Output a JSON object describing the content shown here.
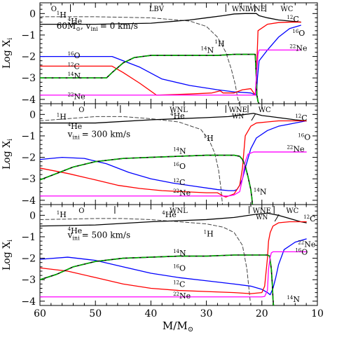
{
  "figure": {
    "xlabel_main": "M/M",
    "xlabel_sub": "⊙",
    "ylabel_main": "Log X",
    "ylabel_sub": "i",
    "xlim": [
      60,
      10
    ],
    "ylim": [
      -4.2,
      0.5
    ],
    "x_ticks": [
      60,
      50,
      40,
      30,
      20,
      10
    ],
    "y_ticks": [
      0,
      -1,
      -2,
      -3,
      -4
    ],
    "colors": {
      "H": "#444444",
      "He": "#000000",
      "C": "#ff0000",
      "O": "#0000ff",
      "Ne": "#ff00ff",
      "N": "#00aa00",
      "N_underlay": "#000000"
    }
  },
  "chart_data": [
    {
      "type": "line",
      "annotation_line1": "60M",
      "annotation_sub1": "⊙",
      "annotation_line2": ", v",
      "annotation_sub2": "ini",
      "annotation_line3": "= 0 km/s",
      "phases": [
        {
          "label": "O",
          "x": 57.5
        },
        {
          "label": "LBV",
          "x": 39
        },
        {
          "label": "WNL",
          "x": 23.8,
          "sup": "↑"
        },
        {
          "label": "WNE",
          "x": 21
        },
        {
          "label": "WC",
          "x": 15.5
        }
      ],
      "phase_bars": [
        54.5,
        26.5,
        21.3,
        19.3
      ],
      "series": [
        {
          "species": "H",
          "mass_number": "1",
          "label_x": 57,
          "label_y": -0.05,
          "label2_x": 28.5,
          "label2_y": -1.4,
          "style": "dashed",
          "x": [
            60,
            50,
            40,
            33,
            30,
            28,
            26.5,
            25.5,
            24.8,
            24.4,
            24.1
          ],
          "y": [
            -0.15,
            -0.15,
            -0.2,
            -0.35,
            -0.6,
            -1.1,
            -1.8,
            -2.6,
            -3.3,
            -3.9,
            -4.2
          ]
        },
        {
          "species": "He",
          "mass_number": "4",
          "label_x": 55,
          "label_y": -0.35,
          "x": [
            60,
            50,
            40,
            33,
            30,
            27,
            25,
            23,
            21,
            20.5,
            19,
            17,
            15,
            13
          ],
          "y": [
            -0.5,
            -0.5,
            -0.45,
            -0.3,
            -0.2,
            -0.1,
            -0.02,
            0,
            0,
            -0.1,
            -0.2,
            -0.3,
            -0.35,
            -0.4
          ]
        },
        {
          "species": "O",
          "mass_number": "16",
          "label_x": 55,
          "label_y": -1.95,
          "label2_x": 14.5,
          "label2_y": -0.9,
          "x": [
            60,
            47,
            42,
            38,
            33,
            28,
            25,
            22,
            21,
            20.8,
            20.5,
            19,
            17,
            15,
            13
          ],
          "y": [
            -2.0,
            -2.0,
            -2.5,
            -3.05,
            -3.35,
            -3.55,
            -3.65,
            -3.7,
            -3.8,
            -3.0,
            -2.2,
            -1.7,
            -1.1,
            -0.7,
            -0.55
          ]
        },
        {
          "species": "C",
          "mass_number": "12",
          "label_x": 55,
          "label_y": -2.45,
          "label2_x": 15.5,
          "label2_y": -0.25,
          "x": [
            60,
            47,
            45,
            42,
            39,
            33,
            29,
            27.5,
            27,
            25,
            23.5,
            22,
            21.2,
            21,
            20.7,
            19,
            17,
            15,
            13
          ],
          "y": [
            -2.45,
            -2.45,
            -2.75,
            -3.25,
            -3.8,
            -3.75,
            -3.7,
            -3.6,
            -3.7,
            -3.7,
            -3.55,
            -3.5,
            -3.8,
            -3.0,
            -0.8,
            -0.5,
            -0.42,
            -0.4,
            -0.4
          ]
        },
        {
          "species": "N",
          "mass_number": "14",
          "label_x": 55,
          "label_y": -2.9,
          "label2_x": 31,
          "label2_y": -1.7,
          "style": "nitrogen",
          "x": [
            60,
            48,
            47,
            45,
            43,
            40,
            35,
            30,
            28,
            25,
            22,
            21.2,
            21,
            20.9,
            20.7,
            20.5
          ],
          "y": [
            -3.0,
            -3.0,
            -2.75,
            -2.3,
            -2.05,
            -1.95,
            -1.95,
            -1.95,
            -1.95,
            -1.9,
            -1.9,
            -1.9,
            -3.0,
            -3.8,
            -4.1,
            -4.2
          ]
        },
        {
          "species": "Ne",
          "mass_number": "22",
          "label_x": 55,
          "label_y": -3.85,
          "label2_x": 15,
          "label2_y": -1.6,
          "x": [
            60,
            30,
            25,
            21.2,
            21,
            20.7,
            20.5,
            17,
            13
          ],
          "y": [
            -3.8,
            -3.8,
            -3.8,
            -3.8,
            -3.0,
            -1.9,
            -1.7,
            -1.7,
            -1.7
          ]
        }
      ]
    },
    {
      "type": "line",
      "annotation_line1": "",
      "annotation_sub1": "",
      "annotation_line2": "v",
      "annotation_sub2": "ini",
      "annotation_line3": "= 300 km/s",
      "phases": [
        {
          "label": "O",
          "x": 52.5
        },
        {
          "label": "WNL",
          "x": 35
        },
        {
          "label": "WNE",
          "x": 24.3
        },
        {
          "label": "WN",
          "x": 24.3,
          "level": 2
        },
        {
          "label": "WC",
          "x": 19.5
        }
      ],
      "phase_bars": [
        45.5,
        26.5,
        22.5
      ],
      "slash_bar": [
        21.5
      ],
      "series": [
        {
          "species": "H",
          "mass_number": "1",
          "label_x": 57,
          "label_y": -0.1,
          "label2_x": 30.5,
          "label2_y": -1.1,
          "style": "dashed",
          "x": [
            60,
            50,
            45,
            40,
            35,
            31,
            29.5,
            28.5,
            27.8,
            27.4,
            27.1
          ],
          "y": [
            -0.3,
            -0.1,
            -0.1,
            -0.2,
            -0.35,
            -0.7,
            -1.2,
            -1.8,
            -2.6,
            -3.4,
            -4.2
          ]
        },
        {
          "species": "He",
          "mass_number": "4",
          "label_x": 55,
          "label_y": -0.55,
          "label2_x": 36.5,
          "label2_y": -0.05,
          "x": [
            60,
            50,
            40,
            35,
            30,
            26,
            23,
            21.5,
            20,
            17,
            14,
            12
          ],
          "y": [
            -0.4,
            -0.4,
            -0.25,
            -0.2,
            -0.15,
            -0.1,
            0,
            0.05,
            -0.05,
            -0.15,
            -0.25,
            -0.3
          ]
        },
        {
          "species": "O",
          "mass_number": "16",
          "label_x": 36,
          "label_y": -2.4,
          "label2_x": 13.5,
          "label2_y": -1.05,
          "x": [
            60,
            56,
            52,
            48,
            44,
            40,
            36,
            32,
            28,
            26,
            25,
            24.5,
            24,
            23.5,
            23,
            22,
            21,
            19,
            17,
            15,
            13,
            12
          ],
          "y": [
            -2.1,
            -2.0,
            -2.05,
            -2.3,
            -2.7,
            -3.0,
            -3.2,
            -3.35,
            -3.5,
            -3.55,
            -3.55,
            -3.5,
            -3.3,
            -3.0,
            -2.5,
            -1.6,
            -1.1,
            -0.75,
            -0.55,
            -0.45,
            -0.35,
            -0.3
          ]
        },
        {
          "species": "C",
          "mass_number": "12",
          "label_x": 36,
          "label_y": -3.15,
          "label2_x": 14,
          "label2_y": -0.15,
          "x": [
            60,
            55,
            50,
            46,
            42,
            38,
            34,
            30,
            28,
            27,
            26.5,
            25,
            24,
            23.5,
            23,
            22,
            21,
            19,
            17,
            15,
            13,
            12
          ],
          "y": [
            -2.5,
            -2.75,
            -3.05,
            -3.3,
            -3.45,
            -3.55,
            -3.6,
            -3.65,
            -3.65,
            -3.8,
            -3.85,
            -3.7,
            -3.3,
            -2.5,
            -1.0,
            -0.55,
            -0.4,
            -0.35,
            -0.3,
            -0.3,
            -0.3,
            -0.3
          ]
        },
        {
          "species": "N",
          "mass_number": "14",
          "label_x": 36,
          "label_y": -1.7,
          "label2_x": 21.5,
          "label2_y": -3.6,
          "style": "nitrogen",
          "x": [
            60,
            57,
            54,
            50,
            45,
            40,
            35,
            30,
            27,
            25,
            24,
            23.5,
            23,
            22.5,
            22,
            21.8,
            21.7
          ],
          "y": [
            -3.05,
            -2.75,
            -2.45,
            -2.2,
            -2.05,
            -2.0,
            -1.95,
            -1.9,
            -1.9,
            -1.9,
            -1.95,
            -2.1,
            -2.4,
            -2.9,
            -3.5,
            -3.9,
            -4.2
          ]
        },
        {
          "species": "Ne",
          "mass_number": "22",
          "label_x": 36,
          "label_y": -3.65,
          "label2_x": 15.5,
          "label2_y": -1.6,
          "x": [
            60,
            40,
            30,
            26,
            25,
            24,
            23.5,
            23,
            22.5,
            21.5,
            19,
            15,
            12
          ],
          "y": [
            -3.8,
            -3.8,
            -3.8,
            -3.8,
            -3.75,
            -3.6,
            -3.0,
            -2.2,
            -1.85,
            -1.75,
            -1.75,
            -1.75,
            -1.75
          ]
        }
      ]
    },
    {
      "type": "line",
      "annotation_line1": "",
      "annotation_sub1": "",
      "annotation_line2": "v",
      "annotation_sub2": "ini",
      "annotation_line3": "= 500 km/s",
      "phases": [
        {
          "label": "O",
          "x": 52.5
        },
        {
          "label": "WNL",
          "x": 35
        },
        {
          "label": "WNE",
          "x": 20
        },
        {
          "label": "WN",
          "x": 20,
          "level": 2
        },
        {
          "label": "WC",
          "x": 14.5
        }
      ],
      "phase_bars": [
        46.5,
        22.3,
        17.8
      ],
      "slash_bar": [
        17.3
      ],
      "series": [
        {
          "species": "H",
          "mass_number": "1",
          "label_x": 57,
          "label_y": 0.05,
          "label2_x": 30.5,
          "label2_y": -0.85,
          "style": "dashed",
          "x": [
            60,
            50,
            45,
            40,
            35,
            30,
            27,
            25,
            23.5,
            22.7,
            22.3,
            22.1
          ],
          "y": [
            -0.2,
            -0.15,
            -0.15,
            -0.2,
            -0.3,
            -0.4,
            -0.55,
            -0.8,
            -1.4,
            -2.5,
            -3.5,
            -4.0
          ]
        },
        {
          "species": "He",
          "mass_number": "4",
          "label_x": 55,
          "label_y": -0.7,
          "label2_x": 38,
          "label2_y": 0.05,
          "x": [
            60,
            50,
            40,
            35,
            30,
            25,
            21,
            19,
            17,
            15,
            13,
            12
          ],
          "y": [
            -0.5,
            -0.45,
            -0.3,
            -0.25,
            -0.2,
            -0.1,
            0.05,
            0.1,
            0,
            -0.15,
            -0.3,
            -0.35
          ]
        },
        {
          "species": "O",
          "mass_number": "16",
          "label_x": 36,
          "label_y": -2.45,
          "label2_x": 14,
          "label2_y": -1.7,
          "x": [
            60,
            55,
            50,
            45,
            40,
            35,
            30,
            25,
            22,
            20,
            19,
            18.5,
            18,
            17.5,
            17,
            16,
            14,
            12
          ],
          "y": [
            -2.05,
            -1.95,
            -2.1,
            -2.4,
            -2.7,
            -2.9,
            -3.05,
            -3.2,
            -3.3,
            -3.45,
            -3.6,
            -3.7,
            -3.4,
            -2.9,
            -2.3,
            -1.6,
            -1.25,
            -1.1
          ]
        },
        {
          "species": "C",
          "mass_number": "12",
          "label_x": 36,
          "label_y": -3.2,
          "label2_x": 12.5,
          "label2_y": -0.15,
          "x": [
            60,
            55,
            50,
            45,
            40,
            35,
            30,
            25,
            22,
            20,
            19.5,
            19,
            18.8,
            18.5,
            18,
            17,
            15,
            13,
            12
          ],
          "y": [
            -2.45,
            -2.6,
            -2.9,
            -3.2,
            -3.4,
            -3.5,
            -3.55,
            -3.6,
            -3.65,
            -3.6,
            -3.3,
            -2.0,
            -1.2,
            -0.8,
            -0.5,
            -0.35,
            -0.3,
            -0.3,
            -0.3
          ]
        },
        {
          "species": "N",
          "mass_number": "14",
          "label_x": 36,
          "label_y": -1.75,
          "label2_x": 15.5,
          "label2_y": -3.9,
          "style": "nitrogen",
          "x": [
            60,
            57,
            54,
            50,
            45,
            40,
            35,
            30,
            25,
            22,
            20,
            19,
            18.6,
            18.3,
            18.1,
            18,
            17.9
          ],
          "y": [
            -3.0,
            -2.75,
            -2.4,
            -2.15,
            -2.0,
            -1.95,
            -1.9,
            -1.9,
            -1.85,
            -1.85,
            -1.85,
            -1.85,
            -1.9,
            -2.5,
            -3.3,
            -3.9,
            -4.2
          ]
        },
        {
          "species": "Ne",
          "mass_number": "22",
          "label_x": 36,
          "label_y": -3.75,
          "label2_x": 13.5,
          "label2_y": -1.35,
          "x": [
            60,
            40,
            30,
            25,
            20,
            19.5,
            19,
            18.8,
            18.5,
            18.3,
            18,
            16,
            14,
            12
          ],
          "y": [
            -3.8,
            -3.8,
            -3.8,
            -3.8,
            -3.8,
            -3.78,
            -3.5,
            -2.5,
            -1.95,
            -1.75,
            -1.7,
            -1.7,
            -1.7,
            -1.7
          ]
        }
      ]
    }
  ]
}
